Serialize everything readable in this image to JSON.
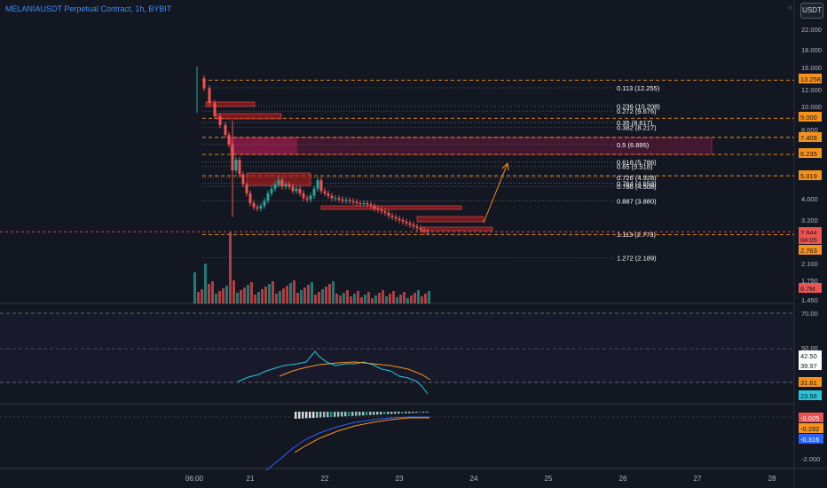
{
  "header": {
    "title": "MELANIAUSDT Perpetual Contract, 1h, BYBIT",
    "currency_button": "USDT"
  },
  "colors": {
    "background": "#131722",
    "up": "#26a69a",
    "down": "#ef5350",
    "orange": "#f7931a",
    "fib_zone": "#e91e63",
    "axis_text": "#b2b5be",
    "rsi_line": "#26c6da",
    "macd_line": "#2962ff"
  },
  "price_axis": {
    "ticks": [
      "22.000",
      "18.000",
      "15.000",
      "12.000",
      "10.000",
      "8.000",
      "4.000",
      "3.200",
      "2.100",
      "1.750",
      "1.450"
    ],
    "badges": [
      {
        "text": "13.258",
        "color": "#f7931a",
        "price": 13.258
      },
      {
        "text": "9.000",
        "color": "#f7931a",
        "price": 9.0
      },
      {
        "text": "7.409",
        "color": "#f7931a",
        "price": 7.409
      },
      {
        "text": "6.235",
        "color": "#f7931a",
        "price": 6.235
      },
      {
        "text": "5.019",
        "color": "#f7931a",
        "price": 5.019
      },
      {
        "text": "2.844",
        "color": "#ef5350",
        "price": 2.844
      },
      {
        "text": "04:05",
        "color": "#ef5350",
        "price": 2.844
      },
      {
        "text": "2.763",
        "color": "#f7931a",
        "price": 2.763
      },
      {
        "text": "6.7M",
        "color": "#ef5350",
        "price": null
      }
    ]
  },
  "fib_levels": [
    {
      "label": "0.113 (12.255)",
      "price": 12.255
    },
    {
      "label": "0.236 (10.208)",
      "price": 10.208
    },
    {
      "label": "0.272 (9.676)",
      "price": 9.676
    },
    {
      "label": "0.35 (8.617)",
      "price": 8.617
    },
    {
      "label": "0.382 (8.217)",
      "price": 8.217
    },
    {
      "label": "0.5 (6.895)",
      "price": 6.895
    },
    {
      "label": "0.618 (5.786)",
      "price": 5.786
    },
    {
      "label": "0.65 (5.518)",
      "price": 5.518
    },
    {
      "label": "0.726 (4.928)",
      "price": 4.928
    },
    {
      "label": "0.764 (4.658)",
      "price": 4.658
    },
    {
      "label": "0.786 (4.508)",
      "price": 4.508
    },
    {
      "label": "0.887 (3.880)",
      "price": 3.88
    },
    {
      "label": "1.113 (2.773)",
      "price": 2.773
    },
    {
      "label": "1.272 (2.189)",
      "price": 2.189
    }
  ],
  "rsi_panel": {
    "ticks": [
      "70.00",
      "50.00"
    ],
    "badges": [
      {
        "text": "42.50",
        "color": "#ffffff",
        "fg": "#131722"
      },
      {
        "text": "39.97",
        "color": "#ffffff",
        "fg": "#131722"
      },
      {
        "text": "31.61",
        "color": "#f7931a",
        "fg": "#131722"
      },
      {
        "text": "23.56",
        "color": "#26c6da",
        "fg": "#131722"
      }
    ]
  },
  "macd_panel": {
    "ticks": [
      "-2.000"
    ],
    "badges": [
      {
        "text": "-0.025",
        "color": "#ef5350",
        "fg": "#ffffff"
      },
      {
        "text": "-0.292",
        "color": "#f7931a",
        "fg": "#131722"
      },
      {
        "text": "-0.316",
        "color": "#2962ff",
        "fg": "#ffffff"
      }
    ]
  },
  "time_axis": {
    "labels": [
      "06:00",
      "21",
      "22",
      "23",
      "24",
      "25",
      "26",
      "27",
      "28"
    ]
  }
}
